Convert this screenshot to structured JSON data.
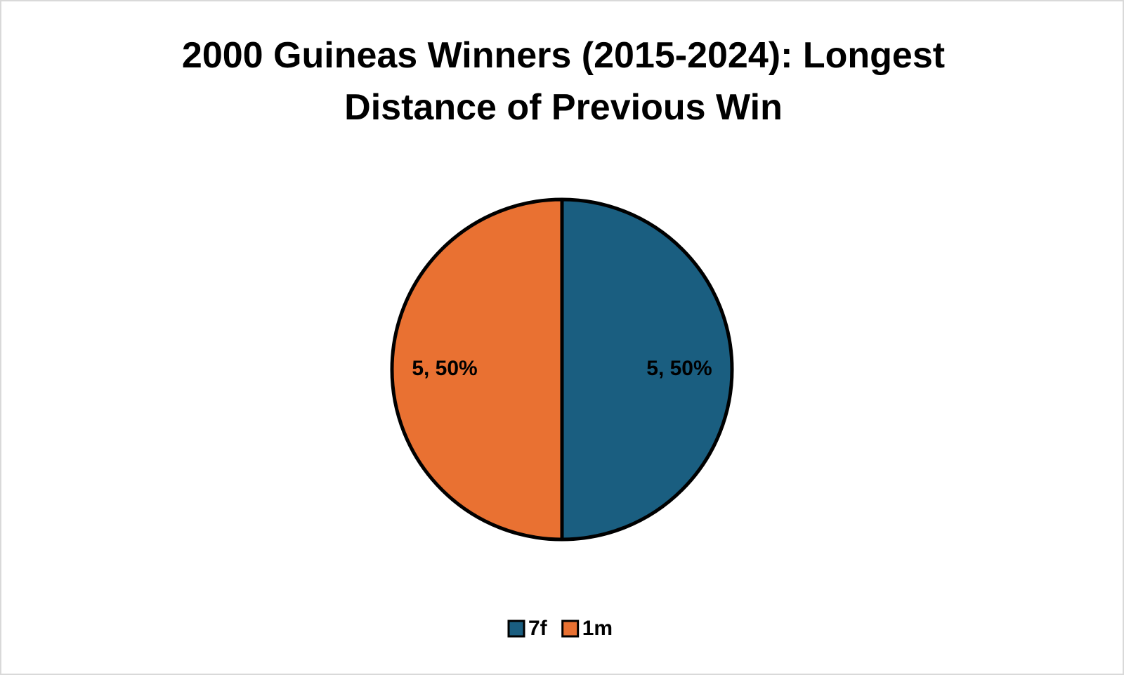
{
  "chart_data": {
    "type": "pie",
    "title": "2000 Guineas Winners (2015-2024): Longest Distance of Previous Win",
    "categories": [
      "7f",
      "1m"
    ],
    "values": [
      5,
      5
    ],
    "value_labels": [
      "5, 50%",
      "5, 50%"
    ],
    "colors": [
      "#1a5e80",
      "#e97132"
    ],
    "legend": "bottom"
  }
}
